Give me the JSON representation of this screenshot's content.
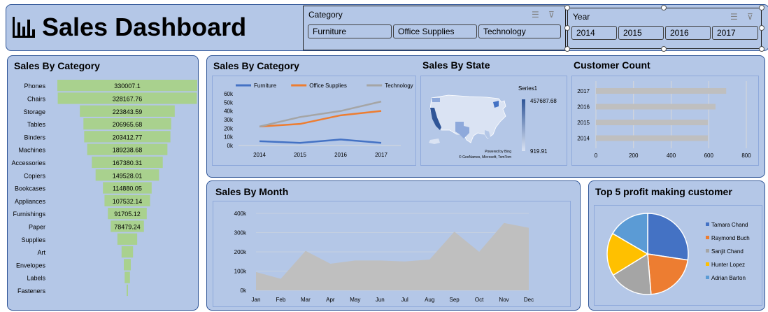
{
  "header": {
    "title": "Sales Dashboard"
  },
  "slicers": {
    "category": {
      "title": "Category",
      "items": [
        "Furniture",
        "Office Supplies",
        "Technology"
      ]
    },
    "year": {
      "title": "Year",
      "items": [
        "2014",
        "2015",
        "2016",
        "2017"
      ]
    }
  },
  "colors": {
    "panel": "#b4c7e7",
    "border": "#2f5597",
    "funnel": "#a9d18e",
    "gray": "#bfbfbf",
    "furniture": "#4472c4",
    "office": "#ed7d31",
    "technology": "#a5a5a5"
  },
  "chart_data": [
    {
      "id": "funnel",
      "type": "bar",
      "title": "Sales By Category",
      "categories": [
        "Phones",
        "Chairs",
        "Storage",
        "Tables",
        "Binders",
        "Machines",
        "Accessories",
        "Copiers",
        "Bookcases",
        "Appliances",
        "Furnishings",
        "Paper",
        "Supplies",
        "Art",
        "Envelopes",
        "Labels",
        "Fasteners"
      ],
      "values": [
        330007.1,
        328167.76,
        223843.59,
        206965.68,
        203412.77,
        189238.68,
        167380.31,
        149528.01,
        114880.05,
        107532.14,
        91705.12,
        78479.24,
        46673.54,
        27118.79,
        16476.4,
        12486.31,
        3024.28
      ],
      "labels": [
        "330007.1",
        "328167.76",
        "223843.59",
        "206965.68",
        "203412.77",
        "189238.68",
        "167380.31",
        "149528.01",
        "114880.05",
        "107532.14",
        "91705.12",
        "78479.24",
        "",
        "",
        "",
        "",
        ""
      ]
    },
    {
      "id": "category_line",
      "type": "line",
      "title": "Sales By Category",
      "categories": [
        "2014",
        "2015",
        "2016",
        "2017"
      ],
      "series": [
        {
          "name": "Furniture",
          "values": [
            5000,
            3000,
            7000,
            3000
          ],
          "color": "#4472c4"
        },
        {
          "name": "Office Supplies",
          "values": [
            22000,
            25000,
            35000,
            40000
          ],
          "color": "#ed7d31"
        },
        {
          "name": "Technology",
          "values": [
            22000,
            33000,
            40000,
            51000
          ],
          "color": "#a5a5a5"
        }
      ],
      "ylim": [
        0,
        60000
      ],
      "yticks": [
        "0k",
        "10k",
        "20k",
        "30k",
        "40k",
        "50k",
        "60k"
      ],
      "legend": "top"
    },
    {
      "id": "state_map",
      "type": "heatmap",
      "title": "Sales By State",
      "series_name": "Series1",
      "max_label": "457687.68",
      "min_label": "919.91",
      "credit1": "Powered by Bing",
      "credit2": "© GeoNames, Microsoft, TomTom"
    },
    {
      "id": "customer_count",
      "type": "bar",
      "title": "Customer Count",
      "categories": [
        "2017",
        "2016",
        "2015",
        "2014"
      ],
      "values": [
        693,
        636,
        595,
        595
      ],
      "xlim": [
        0,
        800
      ],
      "xticks": [
        "0",
        "200",
        "400",
        "600",
        "800"
      ]
    },
    {
      "id": "month_area",
      "type": "area",
      "title": "Sales By Month",
      "categories": [
        "Jan",
        "Feb",
        "Mar",
        "Apr",
        "May",
        "Jun",
        "Jul",
        "Aug",
        "Sep",
        "Oct",
        "Nov",
        "Dec"
      ],
      "values": [
        95000,
        60000,
        205000,
        138000,
        155000,
        155000,
        150000,
        160000,
        305000,
        200000,
        350000,
        325000
      ],
      "ylim": [
        0,
        400000
      ],
      "yticks": [
        "0k",
        "100k",
        "200k",
        "300k",
        "400k"
      ]
    },
    {
      "id": "top5_pie",
      "type": "pie",
      "title": "Top 5 profit making customer",
      "categories": [
        "Tamara Chand",
        "Raymond Buch",
        "Sanjit Chand",
        "Hunter Lopez",
        "Adrian Barton"
      ],
      "values": [
        8981,
        6976,
        5757,
        5622,
        5444
      ],
      "colors": [
        "#4472c4",
        "#ed7d31",
        "#a5a5a5",
        "#ffc000",
        "#5b9bd5"
      ]
    }
  ]
}
